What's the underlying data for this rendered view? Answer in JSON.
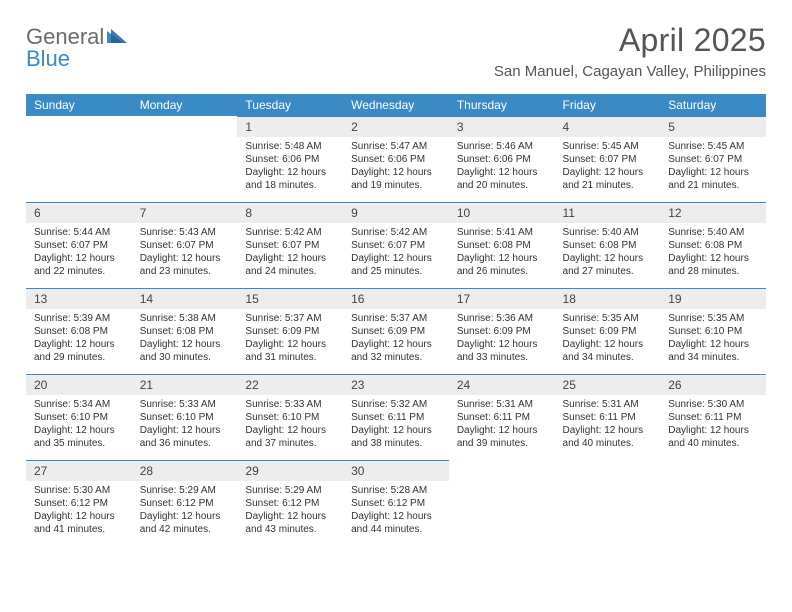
{
  "logo": {
    "part1": "General",
    "part2": "Blue"
  },
  "header": {
    "title": "April 2025",
    "subtitle": "San Manuel, Cagayan Valley, Philippines"
  },
  "columns": [
    "Sunday",
    "Monday",
    "Tuesday",
    "Wednesday",
    "Thursday",
    "Friday",
    "Saturday"
  ],
  "colors": {
    "header_bg": "#3a8ac5",
    "daynum_bg": "#ededed",
    "row_border": "#3a8ac5",
    "text": "#333333",
    "title_text": "#555555"
  },
  "weeks": [
    [
      {
        "num": "",
        "lines": []
      },
      {
        "num": "",
        "lines": []
      },
      {
        "num": "1",
        "lines": [
          "Sunrise: 5:48 AM",
          "Sunset: 6:06 PM",
          "Daylight: 12 hours",
          "and 18 minutes."
        ]
      },
      {
        "num": "2",
        "lines": [
          "Sunrise: 5:47 AM",
          "Sunset: 6:06 PM",
          "Daylight: 12 hours",
          "and 19 minutes."
        ]
      },
      {
        "num": "3",
        "lines": [
          "Sunrise: 5:46 AM",
          "Sunset: 6:06 PM",
          "Daylight: 12 hours",
          "and 20 minutes."
        ]
      },
      {
        "num": "4",
        "lines": [
          "Sunrise: 5:45 AM",
          "Sunset: 6:07 PM",
          "Daylight: 12 hours",
          "and 21 minutes."
        ]
      },
      {
        "num": "5",
        "lines": [
          "Sunrise: 5:45 AM",
          "Sunset: 6:07 PM",
          "Daylight: 12 hours",
          "and 21 minutes."
        ]
      }
    ],
    [
      {
        "num": "6",
        "lines": [
          "Sunrise: 5:44 AM",
          "Sunset: 6:07 PM",
          "Daylight: 12 hours",
          "and 22 minutes."
        ]
      },
      {
        "num": "7",
        "lines": [
          "Sunrise: 5:43 AM",
          "Sunset: 6:07 PM",
          "Daylight: 12 hours",
          "and 23 minutes."
        ]
      },
      {
        "num": "8",
        "lines": [
          "Sunrise: 5:42 AM",
          "Sunset: 6:07 PM",
          "Daylight: 12 hours",
          "and 24 minutes."
        ]
      },
      {
        "num": "9",
        "lines": [
          "Sunrise: 5:42 AM",
          "Sunset: 6:07 PM",
          "Daylight: 12 hours",
          "and 25 minutes."
        ]
      },
      {
        "num": "10",
        "lines": [
          "Sunrise: 5:41 AM",
          "Sunset: 6:08 PM",
          "Daylight: 12 hours",
          "and 26 minutes."
        ]
      },
      {
        "num": "11",
        "lines": [
          "Sunrise: 5:40 AM",
          "Sunset: 6:08 PM",
          "Daylight: 12 hours",
          "and 27 minutes."
        ]
      },
      {
        "num": "12",
        "lines": [
          "Sunrise: 5:40 AM",
          "Sunset: 6:08 PM",
          "Daylight: 12 hours",
          "and 28 minutes."
        ]
      }
    ],
    [
      {
        "num": "13",
        "lines": [
          "Sunrise: 5:39 AM",
          "Sunset: 6:08 PM",
          "Daylight: 12 hours",
          "and 29 minutes."
        ]
      },
      {
        "num": "14",
        "lines": [
          "Sunrise: 5:38 AM",
          "Sunset: 6:08 PM",
          "Daylight: 12 hours",
          "and 30 minutes."
        ]
      },
      {
        "num": "15",
        "lines": [
          "Sunrise: 5:37 AM",
          "Sunset: 6:09 PM",
          "Daylight: 12 hours",
          "and 31 minutes."
        ]
      },
      {
        "num": "16",
        "lines": [
          "Sunrise: 5:37 AM",
          "Sunset: 6:09 PM",
          "Daylight: 12 hours",
          "and 32 minutes."
        ]
      },
      {
        "num": "17",
        "lines": [
          "Sunrise: 5:36 AM",
          "Sunset: 6:09 PM",
          "Daylight: 12 hours",
          "and 33 minutes."
        ]
      },
      {
        "num": "18",
        "lines": [
          "Sunrise: 5:35 AM",
          "Sunset: 6:09 PM",
          "Daylight: 12 hours",
          "and 34 minutes."
        ]
      },
      {
        "num": "19",
        "lines": [
          "Sunrise: 5:35 AM",
          "Sunset: 6:10 PM",
          "Daylight: 12 hours",
          "and 34 minutes."
        ]
      }
    ],
    [
      {
        "num": "20",
        "lines": [
          "Sunrise: 5:34 AM",
          "Sunset: 6:10 PM",
          "Daylight: 12 hours",
          "and 35 minutes."
        ]
      },
      {
        "num": "21",
        "lines": [
          "Sunrise: 5:33 AM",
          "Sunset: 6:10 PM",
          "Daylight: 12 hours",
          "and 36 minutes."
        ]
      },
      {
        "num": "22",
        "lines": [
          "Sunrise: 5:33 AM",
          "Sunset: 6:10 PM",
          "Daylight: 12 hours",
          "and 37 minutes."
        ]
      },
      {
        "num": "23",
        "lines": [
          "Sunrise: 5:32 AM",
          "Sunset: 6:11 PM",
          "Daylight: 12 hours",
          "and 38 minutes."
        ]
      },
      {
        "num": "24",
        "lines": [
          "Sunrise: 5:31 AM",
          "Sunset: 6:11 PM",
          "Daylight: 12 hours",
          "and 39 minutes."
        ]
      },
      {
        "num": "25",
        "lines": [
          "Sunrise: 5:31 AM",
          "Sunset: 6:11 PM",
          "Daylight: 12 hours",
          "and 40 minutes."
        ]
      },
      {
        "num": "26",
        "lines": [
          "Sunrise: 5:30 AM",
          "Sunset: 6:11 PM",
          "Daylight: 12 hours",
          "and 40 minutes."
        ]
      }
    ],
    [
      {
        "num": "27",
        "lines": [
          "Sunrise: 5:30 AM",
          "Sunset: 6:12 PM",
          "Daylight: 12 hours",
          "and 41 minutes."
        ]
      },
      {
        "num": "28",
        "lines": [
          "Sunrise: 5:29 AM",
          "Sunset: 6:12 PM",
          "Daylight: 12 hours",
          "and 42 minutes."
        ]
      },
      {
        "num": "29",
        "lines": [
          "Sunrise: 5:29 AM",
          "Sunset: 6:12 PM",
          "Daylight: 12 hours",
          "and 43 minutes."
        ]
      },
      {
        "num": "30",
        "lines": [
          "Sunrise: 5:28 AM",
          "Sunset: 6:12 PM",
          "Daylight: 12 hours",
          "and 44 minutes."
        ]
      },
      {
        "num": "",
        "lines": []
      },
      {
        "num": "",
        "lines": []
      },
      {
        "num": "",
        "lines": []
      }
    ]
  ]
}
